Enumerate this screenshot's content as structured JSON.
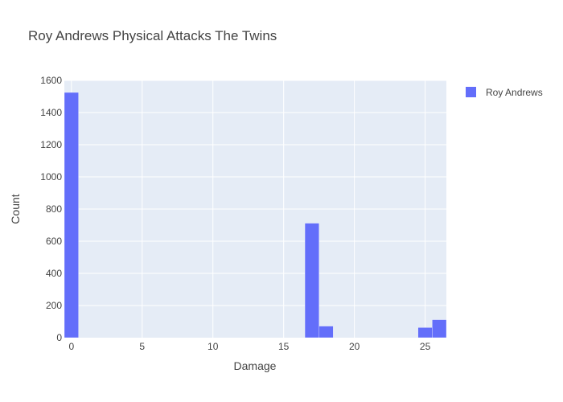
{
  "chart_data": {
    "type": "bar",
    "title": "Roy Andrews Physical Attacks The Twins",
    "xlabel": "Damage",
    "ylabel": "Count",
    "xlim": [
      -0.5,
      26.5
    ],
    "ylim": [
      0,
      1600
    ],
    "x_ticks": [
      0,
      5,
      10,
      15,
      20,
      25
    ],
    "y_ticks": [
      0,
      200,
      400,
      600,
      800,
      1000,
      1200,
      1400,
      1600
    ],
    "bin_width": 1,
    "series": [
      {
        "name": "Roy Andrews",
        "color": "#636efa",
        "bins": [
          {
            "x0": -0.5,
            "x1": 0.5,
            "count": 1525
          },
          {
            "x0": 16.5,
            "x1": 17.5,
            "count": 712
          },
          {
            "x0": 17.5,
            "x1": 18.5,
            "count": 72
          },
          {
            "x0": 24.5,
            "x1": 25.5,
            "count": 63
          },
          {
            "x0": 25.5,
            "x1": 26.5,
            "count": 112
          }
        ]
      }
    ],
    "legend_position": "top-right",
    "grid": true,
    "plot_background": "#e5ecf6"
  }
}
